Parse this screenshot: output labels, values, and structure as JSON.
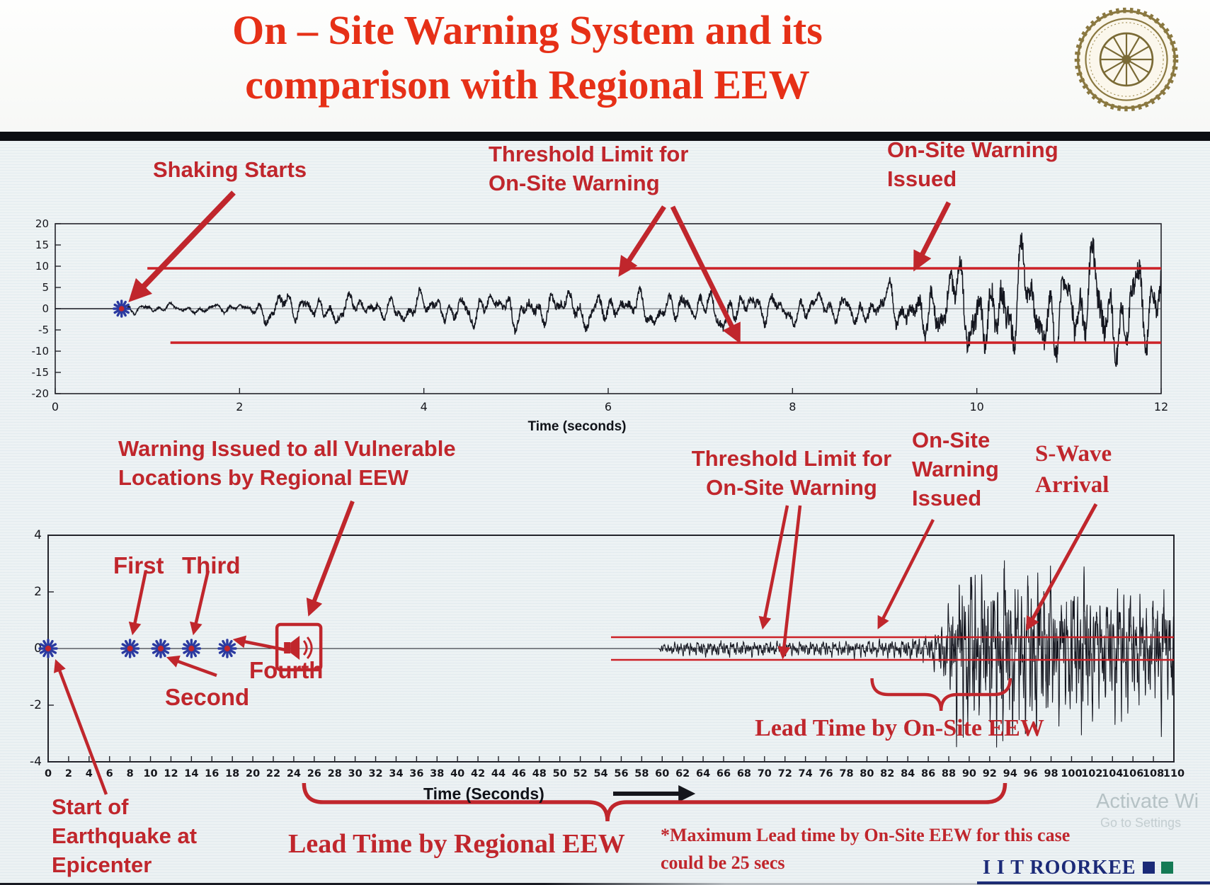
{
  "slide": {
    "title_line1": "On – Site Warning System and its",
    "title_line2": "comparison with Regional EEW"
  },
  "icons": {
    "logo": "iit-roorkee-seal",
    "warning_icon": "speaker-announcement-icon",
    "event_marker": "star-asterisk-marker",
    "time_arrow": "right-arrow"
  },
  "annotations_top": {
    "shaking_starts": "Shaking Starts",
    "threshold_limit": "Threshold Limit for\nOn-Site Warning",
    "warning_issued": "On-Site Warning\nIssued"
  },
  "annotations_bottom": {
    "regional_warning": "Warning Issued to all Vulnerable\nLocations by Regional EEW",
    "first": "First",
    "second": "Second",
    "third": "Third",
    "fourth": "Fourth",
    "threshold_limit": "Threshold Limit for\nOn-Site Warning",
    "onsite_warning_issued": "On-Site\nWarning\nIssued",
    "s_wave_arrival": "S-Wave\nArrival",
    "lead_time_onsite": "Lead Time by On-Site EEW",
    "lead_time_regional": "Lead Time by Regional EEW",
    "max_lead_note": "*Maximum Lead time by On-Site EEW for this case\ncould be 25 secs",
    "start_epicenter": "Start of\nEarthquake at\nEpicenter"
  },
  "footer": {
    "brand": "I I T ROORKEE",
    "watermark_line1": "Activate Wi",
    "watermark_line2": "Go to Settings"
  },
  "colors": {
    "annotation_red": "#c0262c",
    "title_red": "#e63017",
    "threshold_red": "#cc2127",
    "waveform": "#14161f",
    "marker_blue": "#2b3aa0",
    "brand_navy": "#1b2a78",
    "brand_green": "#157a55"
  },
  "chart_data": [
    {
      "id": "onsite-record",
      "type": "line",
      "title": "",
      "xlabel": "Time (seconds)",
      "ylabel": "",
      "xlim": [
        0,
        12
      ],
      "xticks": [
        0,
        2,
        4,
        6,
        8,
        10,
        12
      ],
      "ylim": [
        -20,
        20
      ],
      "yticks": [
        20,
        15,
        10,
        5,
        0,
        -5,
        -10,
        -15,
        -20
      ],
      "grid": false,
      "threshold_upper": 9.5,
      "threshold_lower": -8,
      "threshold_upper_start": 1.0,
      "threshold_lower_start": 1.25,
      "shaking_start_time": 0.72,
      "warning_issued_time": 9.35,
      "envelope": [
        [
          0,
          0
        ],
        [
          0.7,
          0
        ],
        [
          0.78,
          1.6
        ],
        [
          1.4,
          1.2
        ],
        [
          2.1,
          1.5
        ],
        [
          2.4,
          4.8
        ],
        [
          3.2,
          3.6
        ],
        [
          4.2,
          4.4
        ],
        [
          5.2,
          5.2
        ],
        [
          6.4,
          4.6
        ],
        [
          7.2,
          5.4
        ],
        [
          8.2,
          4.2
        ],
        [
          8.9,
          5.0
        ],
        [
          9.35,
          8.5
        ],
        [
          9.8,
          12
        ],
        [
          10.3,
          16
        ],
        [
          10.8,
          13
        ],
        [
          11.3,
          17
        ],
        [
          11.7,
          14
        ],
        [
          12,
          15
        ]
      ],
      "noise_freqs": [
        1.4,
        2.6,
        4.1,
        6.3,
        9.2
      ],
      "samples": 3000,
      "seed": 42
    },
    {
      "id": "regional-comparison",
      "type": "line",
      "title": "",
      "xlabel": "Time (Seconds)",
      "ylabel": "",
      "xlim": [
        0,
        110
      ],
      "xtick_step": 2,
      "xticks": [
        0,
        2,
        4,
        6,
        8,
        10,
        12,
        14,
        16,
        18,
        20,
        22,
        24,
        26,
        28,
        30,
        32,
        34,
        36,
        38,
        40,
        42,
        44,
        46,
        48,
        50,
        52,
        54,
        56,
        58,
        60,
        62,
        64,
        66,
        68,
        70,
        72,
        74,
        76,
        78,
        80,
        82,
        84,
        86,
        88,
        90,
        92,
        94,
        96,
        98,
        100,
        102,
        104,
        106,
        108,
        110
      ],
      "ylim": [
        -4,
        4
      ],
      "yticks": [
        4,
        2,
        0,
        -2,
        -4
      ],
      "grid": false,
      "threshold_upper": 0.4,
      "threshold_lower": -0.4,
      "threshold_upper_start": 55,
      "threshold_lower_start": 55,
      "epicenter_marker_time": 0,
      "p_report_marker_times": [
        8,
        11,
        14,
        17.5
      ],
      "regional_warning_icon_time": 24.5,
      "p_wave_onset_time": 60,
      "onsite_warning_time": 80,
      "s_wave_arrival_time": 93,
      "lead_time_onsite_span": [
        80.5,
        94
      ],
      "lead_time_regional_span": [
        25,
        93.5
      ],
      "envelope": [
        [
          0,
          0
        ],
        [
          59.6,
          0
        ],
        [
          60,
          0.18
        ],
        [
          62,
          0.28
        ],
        [
          66,
          0.3
        ],
        [
          72,
          0.26
        ],
        [
          78,
          0.3
        ],
        [
          83,
          0.34
        ],
        [
          86,
          0.5
        ],
        [
          87.5,
          1.2
        ],
        [
          88.5,
          2.6
        ],
        [
          90,
          3.4
        ],
        [
          91.5,
          2.6
        ],
        [
          93,
          3.6
        ],
        [
          95,
          2.8
        ],
        [
          97,
          3.3
        ],
        [
          99,
          2.4
        ],
        [
          101,
          3.0
        ],
        [
          103,
          2.2
        ],
        [
          105,
          2.7
        ],
        [
          107,
          1.9
        ],
        [
          109,
          2.4
        ],
        [
          110,
          2.0
        ]
      ],
      "noise_freqs": [
        0.9,
        1.8,
        3.1,
        4.6,
        6.4
      ],
      "samples": 5200,
      "seed": 7
    }
  ]
}
